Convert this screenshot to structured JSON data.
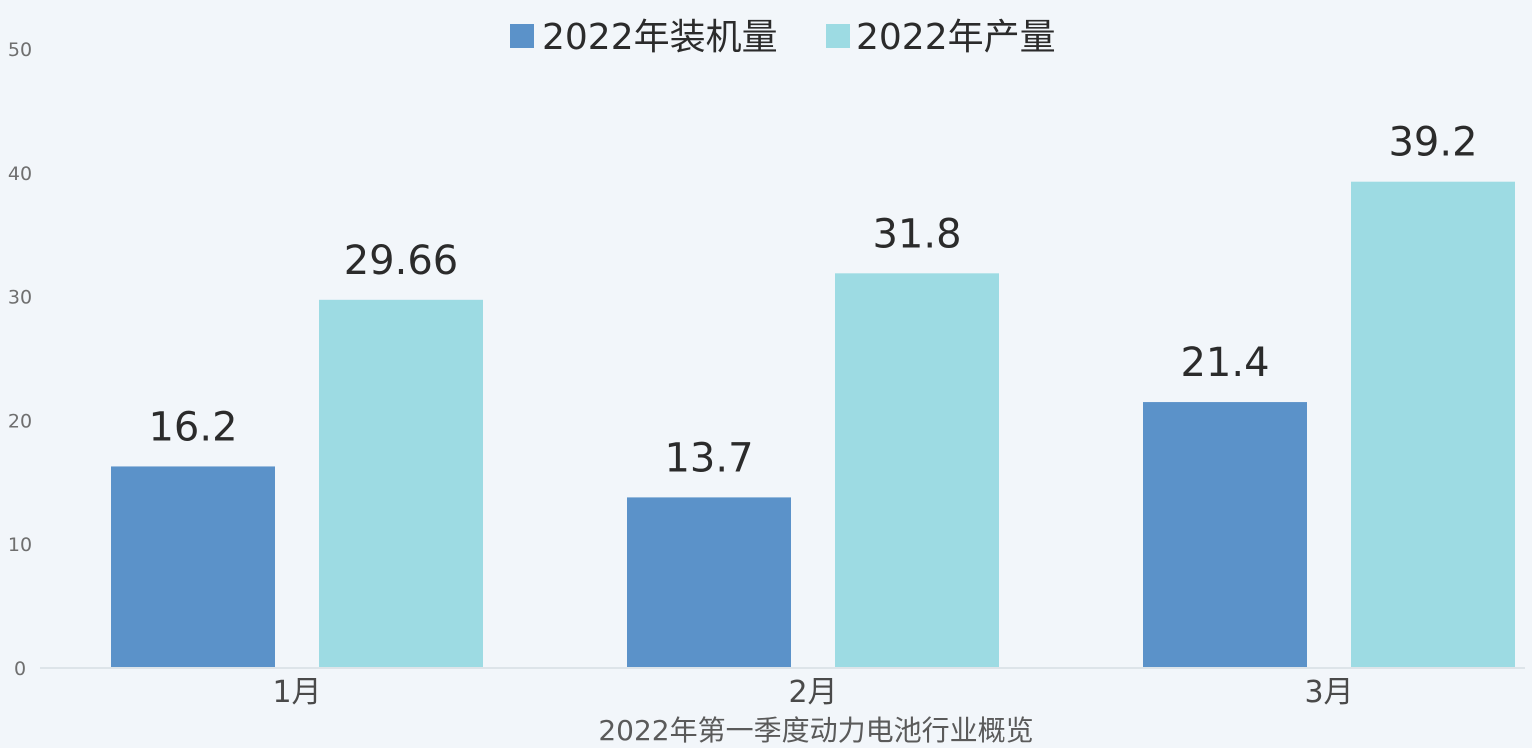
{
  "chart_data": {
    "type": "bar",
    "title": "",
    "xlabel": "2022年第一季度动力电池行业概览",
    "ylabel": "",
    "categories": [
      "1月",
      "2月",
      "3月"
    ],
    "series": [
      {
        "name": "2022年装机量",
        "values": [
          16.2,
          13.7,
          21.4
        ],
        "labels": [
          "16.2",
          "13.7",
          "21.4"
        ],
        "color": "#5b92c9"
      },
      {
        "name": "2022年产量",
        "values": [
          29.66,
          31.8,
          39.2
        ],
        "labels": [
          "29.66",
          "31.8",
          "39.2"
        ],
        "color": "#9ddbe3"
      }
    ],
    "ylim": [
      0,
      50
    ],
    "yticks": [
      0,
      10,
      20,
      30,
      40,
      50
    ],
    "grid": false,
    "legend_position": "top-center"
  },
  "colors": {
    "background": "#f2f6fa",
    "axis": "#d6dde3"
  }
}
